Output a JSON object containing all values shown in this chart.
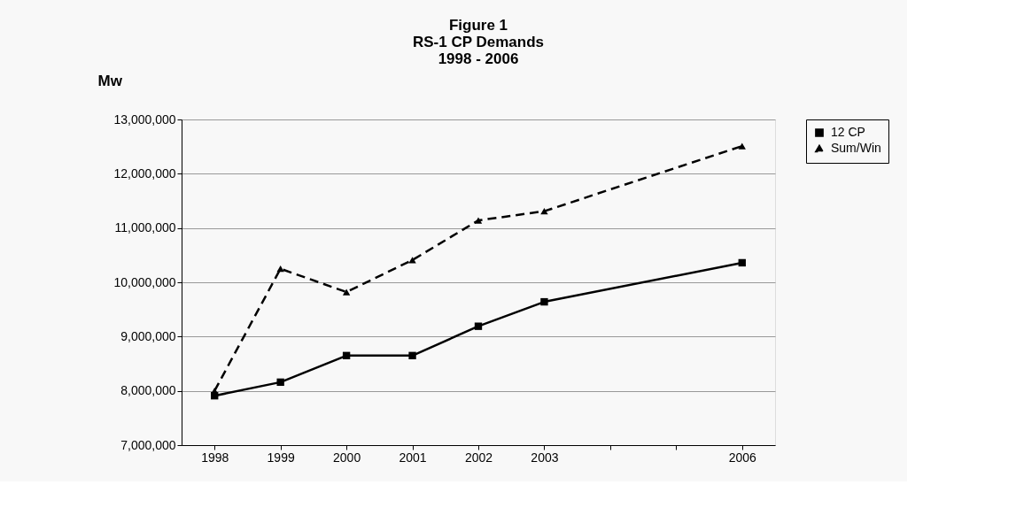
{
  "chart_data": {
    "type": "line",
    "title": "Figure 1\nRS-1 CP Demands\n1998 - 2006",
    "ylabel": "Mw",
    "categories": [
      "1998",
      "1999",
      "2000",
      "2001",
      "2002",
      "2003",
      null,
      null,
      "2006"
    ],
    "series": [
      {
        "name": "12 CP",
        "color": "#000000",
        "marker": "square",
        "line_style": "solid",
        "values": [
          7910000,
          8160000,
          8650000,
          8650000,
          9190000,
          9640000,
          null,
          null,
          10360000
        ]
      },
      {
        "name": "Sum/Win",
        "color": "#000000",
        "marker": "triangle",
        "line_style": "dashed",
        "values": [
          8000000,
          10250000,
          9820000,
          10410000,
          11140000,
          11310000,
          null,
          null,
          12510000
        ]
      }
    ],
    "ylim": [
      7000000,
      13000000
    ],
    "yticks": [
      {
        "value": 7000000,
        "label": "7,000,000"
      },
      {
        "value": 8000000,
        "label": "8,000,000"
      },
      {
        "value": 9000000,
        "label": "9,000,000"
      },
      {
        "value": 10000000,
        "label": "10,000,000"
      },
      {
        "value": 11000000,
        "label": "11,000,000"
      },
      {
        "value": 12000000,
        "label": "12,000,000"
      },
      {
        "value": 13000000,
        "label": "13,000,000"
      }
    ],
    "grid": "y",
    "legend": "right"
  }
}
